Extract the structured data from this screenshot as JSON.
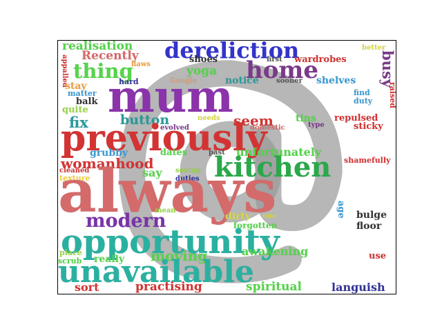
{
  "wordcloud": {
    "watermark_icon": "at-sign-icon",
    "words": [
      {
        "text": "realisation",
        "color": "#55d44a"
      },
      {
        "text": "Recently",
        "color": "#d46a6a"
      },
      {
        "text": "dereliction",
        "color": "#3333cc"
      },
      {
        "text": "better",
        "color": "#d9d94a"
      },
      {
        "text": "flaws",
        "color": "#f0a040"
      },
      {
        "text": "shoes",
        "color": "#333333"
      },
      {
        "text": "first",
        "color": "#555555"
      },
      {
        "text": "wardrobes",
        "color": "#d43333"
      },
      {
        "text": "busy",
        "color": "#7a3a8a"
      },
      {
        "text": "thing",
        "color": "#55d44a"
      },
      {
        "text": "yoga",
        "color": "#55d44a"
      },
      {
        "text": "home",
        "color": "#7a3a8a"
      },
      {
        "text": "appalled",
        "color": "#d43333"
      },
      {
        "text": "stay",
        "color": "#f0a040"
      },
      {
        "text": "hard",
        "color": "#333399"
      },
      {
        "text": "Google",
        "color": "#d4a080"
      },
      {
        "text": "notice",
        "color": "#2a9a9a"
      },
      {
        "text": "sooner",
        "color": "#555555"
      },
      {
        "text": "shelves",
        "color": "#3a9ad4"
      },
      {
        "text": "raised",
        "color": "#d43333"
      },
      {
        "text": "matter",
        "color": "#3a9ad4"
      },
      {
        "text": "mum",
        "color": "#8a33aa"
      },
      {
        "text": "find",
        "color": "#3a9ad4"
      },
      {
        "text": "balk",
        "color": "#333333"
      },
      {
        "text": "duty",
        "color": "#3a9ad4"
      },
      {
        "text": "quite",
        "color": "#9ad44a"
      },
      {
        "text": "fix",
        "color": "#2a9a9a"
      },
      {
        "text": "button",
        "color": "#2a9a9a"
      },
      {
        "text": "needs",
        "color": "#d9d94a"
      },
      {
        "text": "seem",
        "color": "#d43333"
      },
      {
        "text": "tins",
        "color": "#55d44a"
      },
      {
        "text": "repulsed",
        "color": "#d43333"
      },
      {
        "text": "evolved",
        "color": "#7a3a8a"
      },
      {
        "text": "domestic",
        "color": "#d46a6a"
      },
      {
        "text": "type",
        "color": "#7a3a8a"
      },
      {
        "text": "sticky",
        "color": "#d43333"
      },
      {
        "text": "previously",
        "color": "#d43333"
      },
      {
        "text": "grubby",
        "color": "#3a9ad4"
      },
      {
        "text": "dates",
        "color": "#55d44a"
      },
      {
        "text": "past",
        "color": "#555555"
      },
      {
        "text": "unfortunately",
        "color": "#55d44a"
      },
      {
        "text": "shamefully",
        "color": "#d43333"
      },
      {
        "text": "womanhood",
        "color": "#d43333"
      },
      {
        "text": "kitchen",
        "color": "#2aa84a"
      },
      {
        "text": "cleaned",
        "color": "#d43333"
      },
      {
        "text": "say",
        "color": "#55d44a"
      },
      {
        "text": "seeing",
        "color": "#9ad44a"
      },
      {
        "text": "texture",
        "color": "#f0d040"
      },
      {
        "text": "duties",
        "color": "#333399"
      },
      {
        "text": "always",
        "color": "#d46a6a"
      },
      {
        "text": "mean",
        "color": "#9ad44a"
      },
      {
        "text": "dirty",
        "color": "#d9d94a"
      },
      {
        "text": "one",
        "color": "#d9d94a"
      },
      {
        "text": "age",
        "color": "#3a9ad4"
      },
      {
        "text": "bulge",
        "color": "#333333"
      },
      {
        "text": "modern",
        "color": "#7a33aa"
      },
      {
        "text": "forgotten",
        "color": "#55d44a"
      },
      {
        "text": "floor",
        "color": "#333333"
      },
      {
        "text": "opportunity",
        "color": "#2ab0a0"
      },
      {
        "text": "place",
        "color": "#9ad44a"
      },
      {
        "text": "moving",
        "color": "#55d44a"
      },
      {
        "text": "awakening",
        "color": "#55d44a"
      },
      {
        "text": "scrub",
        "color": "#55d44a"
      },
      {
        "text": "really",
        "color": "#55d44a"
      },
      {
        "text": "use",
        "color": "#d43333"
      },
      {
        "text": "unavailable",
        "color": "#2ab0a0"
      },
      {
        "text": "sort",
        "color": "#d43333"
      },
      {
        "text": "practising",
        "color": "#d43333"
      },
      {
        "text": "spiritual",
        "color": "#55d44a"
      },
      {
        "text": "languish",
        "color": "#333399"
      }
    ]
  }
}
